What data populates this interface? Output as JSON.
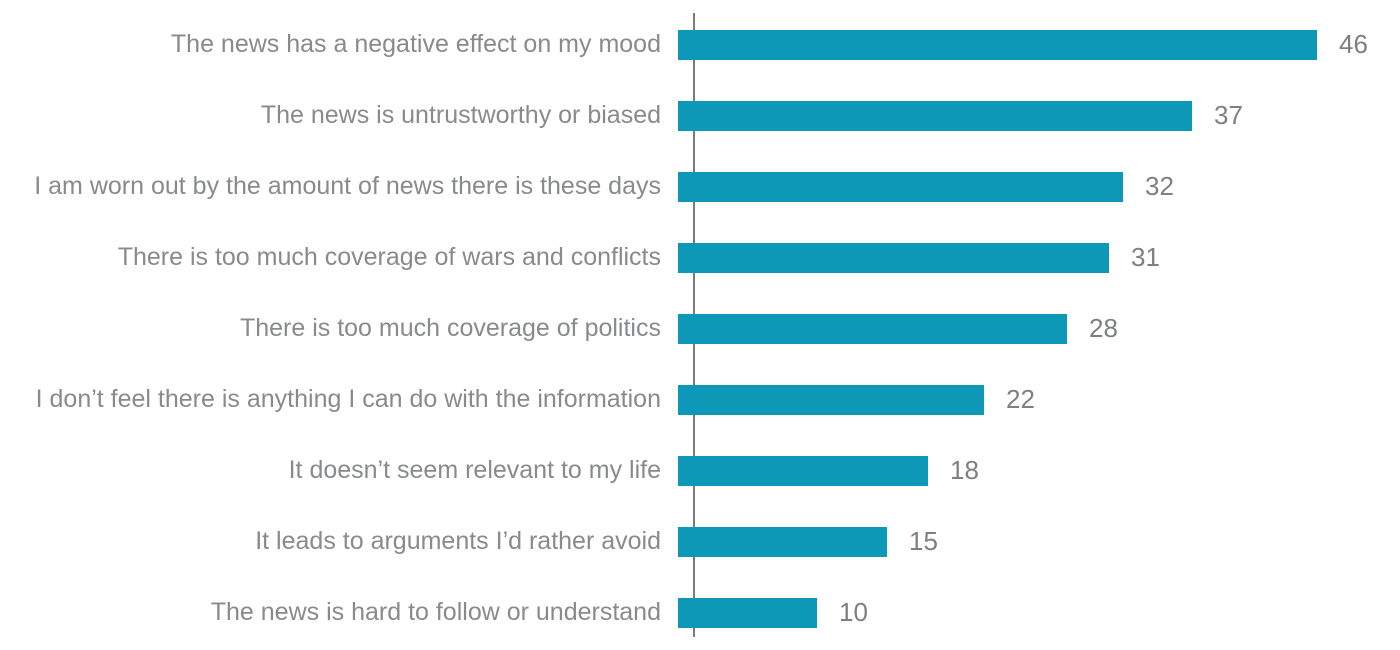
{
  "chart_data": {
    "type": "bar",
    "orientation": "horizontal",
    "title": "",
    "xlabel": "",
    "ylabel": "",
    "xlim": [
      0,
      50
    ],
    "grid": false,
    "legend": false,
    "categories": [
      "The news has a negative effect on my mood",
      "The news is untrustworthy or biased",
      "I am worn out by the amount of news there is these days",
      "There is too much coverage of wars and conflicts",
      "There is too much coverage of politics",
      "I don’t feel there is anything I can do with the information",
      "It doesn’t seem relevant to my life",
      "It leads to arguments I’d rather avoid",
      "The news is hard to follow or understand"
    ],
    "values": [
      46,
      37,
      32,
      31,
      28,
      22,
      18,
      15,
      10
    ],
    "bar_color": "#0c98b6",
    "category_label_color": "#888a8c",
    "value_label_color": "#7d7f81",
    "axis_line_color": "#7b7b7b",
    "background_color": "#ffffff"
  }
}
